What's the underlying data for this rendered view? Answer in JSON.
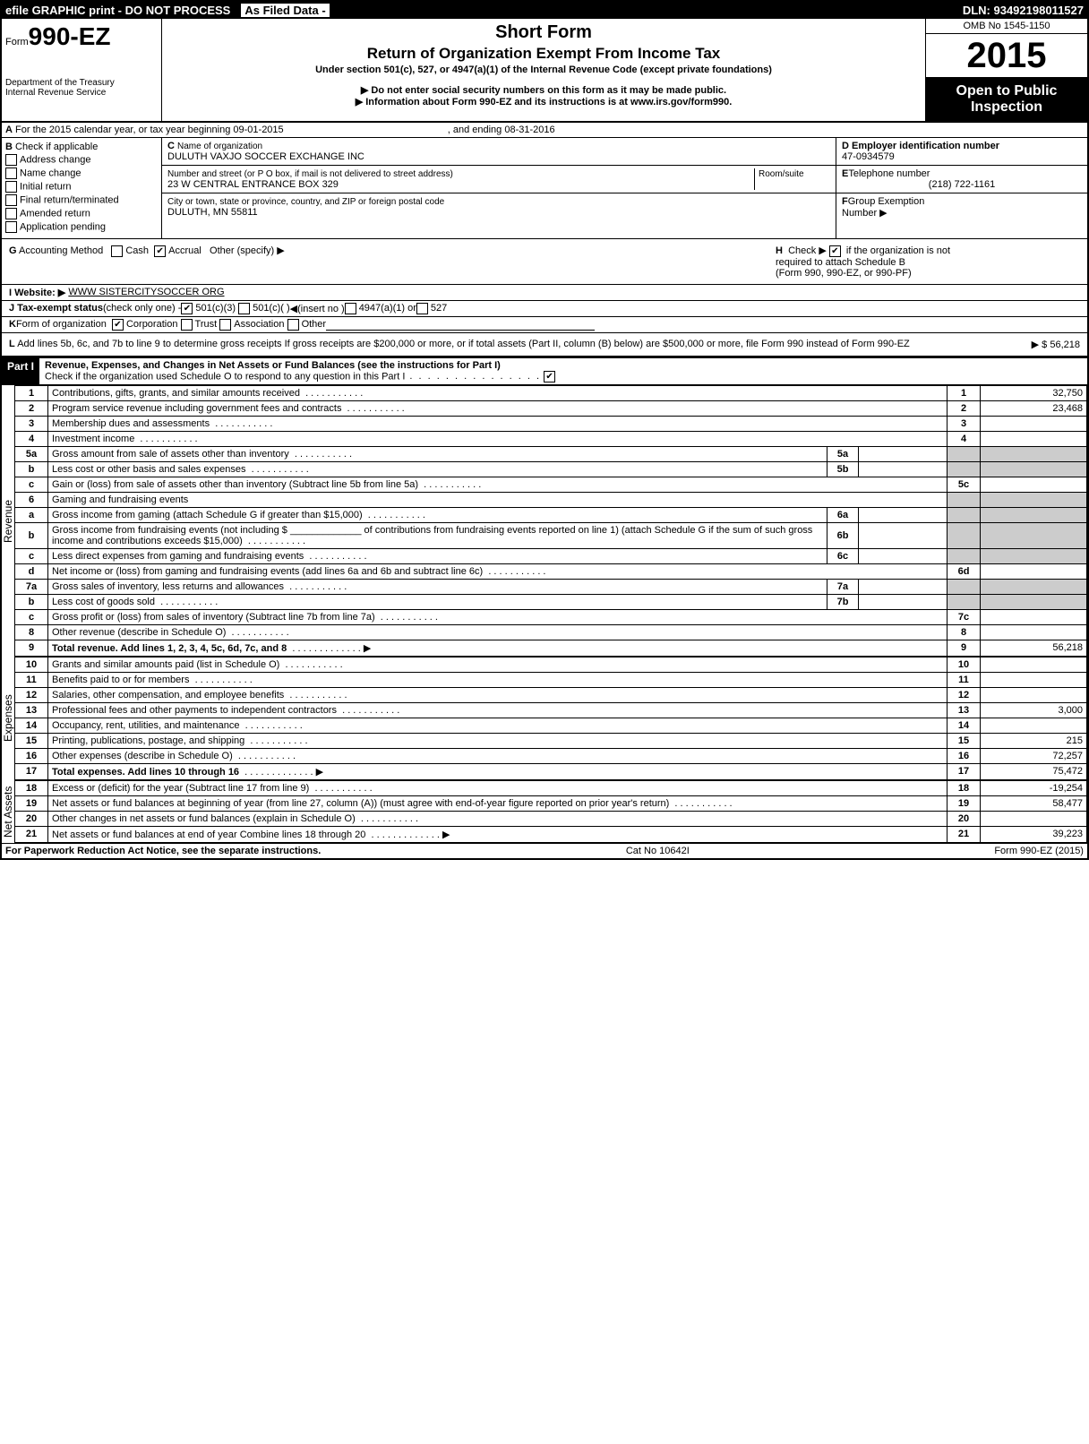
{
  "top": {
    "efile": "efile GRAPHIC print - DO NOT PROCESS",
    "asfiled": "As Filed Data -",
    "dln": "DLN: 93492198011527"
  },
  "header": {
    "form_prefix": "Form",
    "form_no": "990-EZ",
    "short_form": "Short Form",
    "title": "Return of Organization Exempt From Income Tax",
    "subtitle": "Under section 501(c), 527, or 4947(a)(1) of the Internal Revenue Code (except private foundations)",
    "arrow1": "▶ Do not enter social security numbers on this form as it may be made public.",
    "arrow2": "▶ Information about Form 990-EZ and its instructions is at www.irs.gov/form990.",
    "dept": "Department of the Treasury",
    "irs": "Internal Revenue Service",
    "omb": "OMB No 1545-1150",
    "year": "2015",
    "open1": "Open to Public",
    "open2": "Inspection"
  },
  "lineA": {
    "label_a": "A",
    "text": "For the 2015 calendar year, or tax year beginning 09-01-2015",
    "mid": ", and ending 08-31-2016"
  },
  "colB": {
    "label": "B",
    "check_if": "Check if applicable",
    "opts": [
      "Address change",
      "Name change",
      "Initial return",
      "Final return/terminated",
      "Amended return",
      "Application pending"
    ]
  },
  "colC": {
    "label": "C",
    "name_label": "Name of organization",
    "name": "DULUTH VAXJO SOCCER EXCHANGE INC",
    "addr_label": "Number and street (or P O box, if mail is not delivered to street address)",
    "room_label": "Room/suite",
    "addr": "23 W CENTRAL ENTRANCE BOX 329",
    "city_label": "City or town, state or province, country, and ZIP or foreign postal code",
    "city": "DULUTH, MN  55811"
  },
  "colDE": {
    "d_label": "D Employer identification number",
    "ein": "47-0934579",
    "e_label": "E",
    "tel_label": "Telephone number",
    "tel": "(218) 722-1161",
    "f_label": "F",
    "grp_label": "Group Exemption",
    "grp2": "Number  ▶"
  },
  "lineG": {
    "g": "G",
    "acct": "Accounting Method",
    "cash": "Cash",
    "accrual": "Accrual",
    "other": "Other (specify) ▶",
    "h": "H",
    "htext": "Check ▶",
    "htext2": "if the organization is not",
    "htext3": "required to attach Schedule B",
    "htext4": "(Form 990, 990-EZ, or 990-PF)"
  },
  "lineI": {
    "i": "I Website: ▶",
    "url": "WWW SISTERCITYSOCCER ORG"
  },
  "lineJ": {
    "j": "J Tax-exempt status",
    "text": "(check only one) -",
    "c501c3": "501(c)(3)",
    "c501c": "501(c)(  )",
    "insert": "◀(insert no )",
    "c4947": "4947(a)(1) or",
    "c527": "527"
  },
  "lineK": {
    "k": "K",
    "form_org": "Form of organization",
    "corp": "Corporation",
    "trust": "Trust",
    "assoc": "Association",
    "other": "Other"
  },
  "lineL": {
    "l": "L",
    "text": "Add lines 5b, 6c, and 7b to line 9 to determine gross receipts  If gross receipts are $200,000 or more, or if total assets (Part II, column (B) below) are $500,000 or more, file Form 990 instead of Form 990-EZ",
    "arrow": "▶ $ 56,218"
  },
  "part1": {
    "label": "Part I",
    "title": "Revenue, Expenses, and Changes in Net Assets or Fund Balances (see the instructions for Part I)",
    "sub": "Check if the organization used Schedule O to respond to any question in this Part I",
    "check": "✔"
  },
  "sections": {
    "revenue": "Revenue",
    "expenses": "Expenses",
    "netassets": "Net Assets"
  },
  "rows": [
    {
      "n": "1",
      "desc": "Contributions, gifts, grants, and similar amounts received",
      "ln": "1",
      "amt": "32,750"
    },
    {
      "n": "2",
      "desc": "Program service revenue including government fees and contracts",
      "ln": "2",
      "amt": "23,468"
    },
    {
      "n": "3",
      "desc": "Membership dues and assessments",
      "ln": "3",
      "amt": ""
    },
    {
      "n": "4",
      "desc": "Investment income",
      "ln": "4",
      "amt": ""
    },
    {
      "n": "5a",
      "desc": "Gross amount from sale of assets other than inventory",
      "sub": "5a",
      "subval": ""
    },
    {
      "n": "b",
      "desc": "Less cost or other basis and sales expenses",
      "sub": "5b",
      "subval": ""
    },
    {
      "n": "c",
      "desc": "Gain or (loss) from sale of assets other than inventory (Subtract line 5b from line 5a)",
      "ln": "5c",
      "amt": ""
    },
    {
      "n": "6",
      "desc": "Gaming and fundraising events"
    },
    {
      "n": "a",
      "desc": "Gross income from gaming (attach Schedule G if greater than $15,000)",
      "sub": "6a",
      "subval": ""
    },
    {
      "n": "b",
      "desc": "Gross income from fundraising events (not including $ _____________ of contributions from fundraising events reported on line 1) (attach Schedule G if the sum of such gross income and contributions exceeds $15,000)",
      "sub": "6b",
      "subval": ""
    },
    {
      "n": "c",
      "desc": "Less direct expenses from gaming and fundraising events",
      "sub": "6c",
      "subval": ""
    },
    {
      "n": "d",
      "desc": "Net income or (loss) from gaming and fundraising events (add lines 6a and 6b and subtract line 6c)",
      "ln": "6d",
      "amt": ""
    },
    {
      "n": "7a",
      "desc": "Gross sales of inventory, less returns and allowances",
      "sub": "7a",
      "subval": ""
    },
    {
      "n": "b",
      "desc": "Less cost of goods sold",
      "sub": "7b",
      "subval": ""
    },
    {
      "n": "c",
      "desc": "Gross profit or (loss) from sales of inventory (Subtract line 7b from line 7a)",
      "ln": "7c",
      "amt": ""
    },
    {
      "n": "8",
      "desc": "Other revenue (describe in Schedule O)",
      "ln": "8",
      "amt": ""
    },
    {
      "n": "9",
      "desc": "Total revenue. Add lines 1, 2, 3, 4, 5c, 6d, 7c, and 8",
      "ln": "9",
      "amt": "56,218",
      "bold": true,
      "arrow": true
    }
  ],
  "exp_rows": [
    {
      "n": "10",
      "desc": "Grants and similar amounts paid (list in Schedule O)",
      "ln": "10",
      "amt": ""
    },
    {
      "n": "11",
      "desc": "Benefits paid to or for members",
      "ln": "11",
      "amt": ""
    },
    {
      "n": "12",
      "desc": "Salaries, other compensation, and employee benefits",
      "ln": "12",
      "amt": ""
    },
    {
      "n": "13",
      "desc": "Professional fees and other payments to independent contractors",
      "ln": "13",
      "amt": "3,000"
    },
    {
      "n": "14",
      "desc": "Occupancy, rent, utilities, and maintenance",
      "ln": "14",
      "amt": ""
    },
    {
      "n": "15",
      "desc": "Printing, publications, postage, and shipping",
      "ln": "15",
      "amt": "215"
    },
    {
      "n": "16",
      "desc": "Other expenses (describe in Schedule O)",
      "ln": "16",
      "amt": "72,257"
    },
    {
      "n": "17",
      "desc": "Total expenses. Add lines 10 through 16",
      "ln": "17",
      "amt": "75,472",
      "bold": true,
      "arrow": true
    }
  ],
  "na_rows": [
    {
      "n": "18",
      "desc": "Excess or (deficit) for the year (Subtract line 17 from line 9)",
      "ln": "18",
      "amt": "-19,254"
    },
    {
      "n": "19",
      "desc": "Net assets or fund balances at beginning of year (from line 27, column (A)) (must agree with end-of-year figure reported on prior year's return)",
      "ln": "19",
      "amt": "58,477"
    },
    {
      "n": "20",
      "desc": "Other changes in net assets or fund balances (explain in Schedule O)",
      "ln": "20",
      "amt": ""
    },
    {
      "n": "21",
      "desc": "Net assets or fund balances at end of year Combine lines 18 through 20",
      "ln": "21",
      "amt": "39,223",
      "arrow": true
    }
  ],
  "footer": {
    "left": "For Paperwork Reduction Act Notice, see the separate instructions.",
    "mid": "Cat No 10642I",
    "right": "Form 990-EZ (2015)"
  }
}
